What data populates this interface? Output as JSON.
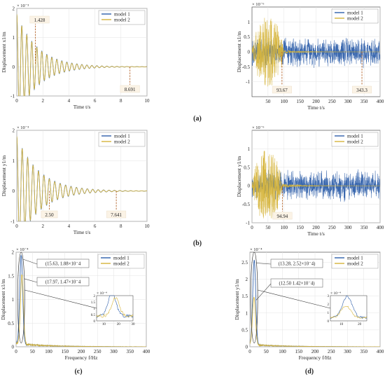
{
  "colors": {
    "model1": "#2e5faa",
    "model2": "#d6b43a",
    "model2_low": "#98a84a",
    "annotation": "#b5672f",
    "label_box": "#fbf3e6",
    "axes": "#333333",
    "grid": "#e3e3e3"
  },
  "panel_labels": [
    "(a)",
    "(b)",
    "(c)",
    "(d)"
  ],
  "chart_data": [
    {
      "id": "a-left",
      "type": "line",
      "ylabel": "Displacement x1/m",
      "xlabel": "Time t/s",
      "exponent": "× 10⁻³",
      "xlim": [
        0,
        10
      ],
      "ylim": [
        -1,
        2
      ],
      "xticks": [
        0,
        2,
        4,
        6,
        8,
        10
      ],
      "yticks": [
        -1,
        0,
        1,
        2
      ],
      "legend": [
        "model 1",
        "model 2"
      ],
      "series": [
        {
          "name": "model 1",
          "kind": "decay",
          "amp": 1.0,
          "tau": 1.6,
          "freq": 2.6
        },
        {
          "name": "model 2",
          "kind": "decay",
          "amp": 1.0,
          "tau": 1.55,
          "freq": 2.6
        }
      ],
      "annotations": [
        {
          "x": 1.428,
          "y": 0.1,
          "label": "1.428",
          "side": "above"
        },
        {
          "x": 8.691,
          "y": 0.0,
          "label": "8.691",
          "side": "below"
        }
      ]
    },
    {
      "id": "a-right",
      "type": "line",
      "ylabel": "Displacement x1/m",
      "xlabel": "Time t/s",
      "exponent": "× 10⁻⁶",
      "xlim": [
        0,
        400
      ],
      "ylim": [
        -1.5,
        1.5
      ],
      "xticks": [
        50,
        100,
        150,
        200,
        250,
        300,
        350,
        400
      ],
      "yticks": [
        -1,
        -0.5,
        0,
        0.5,
        1
      ],
      "legend": [
        "model 1",
        "model 2"
      ],
      "series": [
        {
          "name": "model 1",
          "kind": "noise",
          "amp": 0.55,
          "seed": 7
        },
        {
          "name": "model 2",
          "kind": "burst",
          "amp": 1.2,
          "end": 100,
          "seed": 3
        }
      ],
      "annotations": [
        {
          "x": 93.67,
          "y": 0.0,
          "label": "93.67",
          "side": "below"
        },
        {
          "x": 343.3,
          "y": 0.0,
          "label": "343.3",
          "side": "below"
        }
      ]
    },
    {
      "id": "b-left",
      "type": "line",
      "ylabel": "Displacement y1/m",
      "xlabel": "Time t/s",
      "exponent": "× 10⁻³",
      "xlim": [
        0,
        10
      ],
      "ylim": [
        -1,
        2
      ],
      "xticks": [
        0,
        2,
        4,
        6,
        8,
        10
      ],
      "yticks": [
        -1,
        0,
        1,
        2
      ],
      "legend": [
        "model 1",
        "model 2"
      ],
      "series": [
        {
          "name": "model 1",
          "kind": "decay",
          "amp": 1.0,
          "tau": 1.7,
          "freq": 2.4
        },
        {
          "name": "model 2",
          "kind": "decay",
          "amp": 1.0,
          "tau": 1.65,
          "freq": 2.4
        }
      ],
      "annotations": [
        {
          "x": 2.5,
          "y": 0.0,
          "label": "2.50",
          "side": "below"
        },
        {
          "x": 7.641,
          "y": 0.0,
          "label": "7.641",
          "side": "below"
        }
      ]
    },
    {
      "id": "b-right",
      "type": "line",
      "ylabel": "Displacement y1/m",
      "xlabel": "Time t/s",
      "exponent": "× 10⁻⁶",
      "xlim": [
        0,
        400
      ],
      "ylim": [
        -1,
        1.5
      ],
      "xticks": [
        0,
        50,
        100,
        150,
        200,
        250,
        300,
        350,
        400
      ],
      "yticks": [
        -1,
        -0.5,
        0,
        0.5,
        1
      ],
      "legend": [
        "model 1",
        "model 2"
      ],
      "series": [
        {
          "name": "model 1",
          "kind": "noise",
          "amp": 0.45,
          "seed": 11
        },
        {
          "name": "model 2",
          "kind": "burst",
          "amp": 1.0,
          "end": 95,
          "seed": 5
        }
      ],
      "annotations": [
        {
          "x": 94.94,
          "y": 0.0,
          "label": "94.94",
          "side": "below"
        }
      ]
    },
    {
      "id": "c",
      "type": "line",
      "ylabel": "Displacement x1/m",
      "xlabel": "Frequency f/Hz",
      "exponent": "× 10⁻⁴",
      "xlim": [
        0,
        400
      ],
      "ylim": [
        0,
        2
      ],
      "xticks": [
        0,
        50,
        100,
        150,
        200,
        250,
        300,
        350,
        400
      ],
      "yticks": [
        0,
        0.5,
        1,
        1.5,
        2
      ],
      "legend": [
        "model 1",
        "model 2"
      ],
      "series": [
        {
          "name": "model 1",
          "kind": "peak",
          "f0": 15.63,
          "peak": 1.88
        },
        {
          "name": "model 2",
          "kind": "peak",
          "f0": 17.97,
          "peak": 1.47
        }
      ],
      "point_labels": [
        "(15.63, 1.88×10⁻4",
        "(17.97, 1.47×10⁻4"
      ],
      "inset": {
        "exponent": "× 10⁻⁴",
        "xticks": [
          10,
          20,
          30
        ],
        "yticks": [
          0,
          0.5,
          1,
          1.5,
          2
        ],
        "xlim": [
          5,
          30
        ],
        "ylim": [
          0,
          2
        ]
      }
    },
    {
      "id": "d",
      "type": "line",
      "ylabel": "Displacement y1/m",
      "xlabel": "Frequency f/Hz",
      "exponent": "× 10⁻⁴",
      "xlim": [
        0,
        400
      ],
      "ylim": [
        0,
        2.8
      ],
      "xticks": [
        0,
        50,
        100,
        150,
        200,
        250,
        300,
        350,
        400
      ],
      "yticks": [
        0,
        0.5,
        1,
        1.5,
        2,
        2.5
      ],
      "legend": [
        "model 1",
        "model 2"
      ],
      "series": [
        {
          "name": "model 1",
          "kind": "peak",
          "f0": 13.28,
          "peak": 2.52
        },
        {
          "name": "model 2",
          "kind": "peak",
          "f0": 12.5,
          "peak": 1.42
        }
      ],
      "point_labels": [
        "(13.28, 2.52×10⁻4)",
        "(12.50 1.42×10⁻4)"
      ],
      "inset": {
        "exponent": "× 10⁻⁴",
        "xticks": [
          10,
          20
        ],
        "yticks": [
          0,
          1,
          2,
          3
        ],
        "xlim": [
          4,
          24
        ],
        "ylim": [
          0,
          3
        ]
      }
    }
  ]
}
